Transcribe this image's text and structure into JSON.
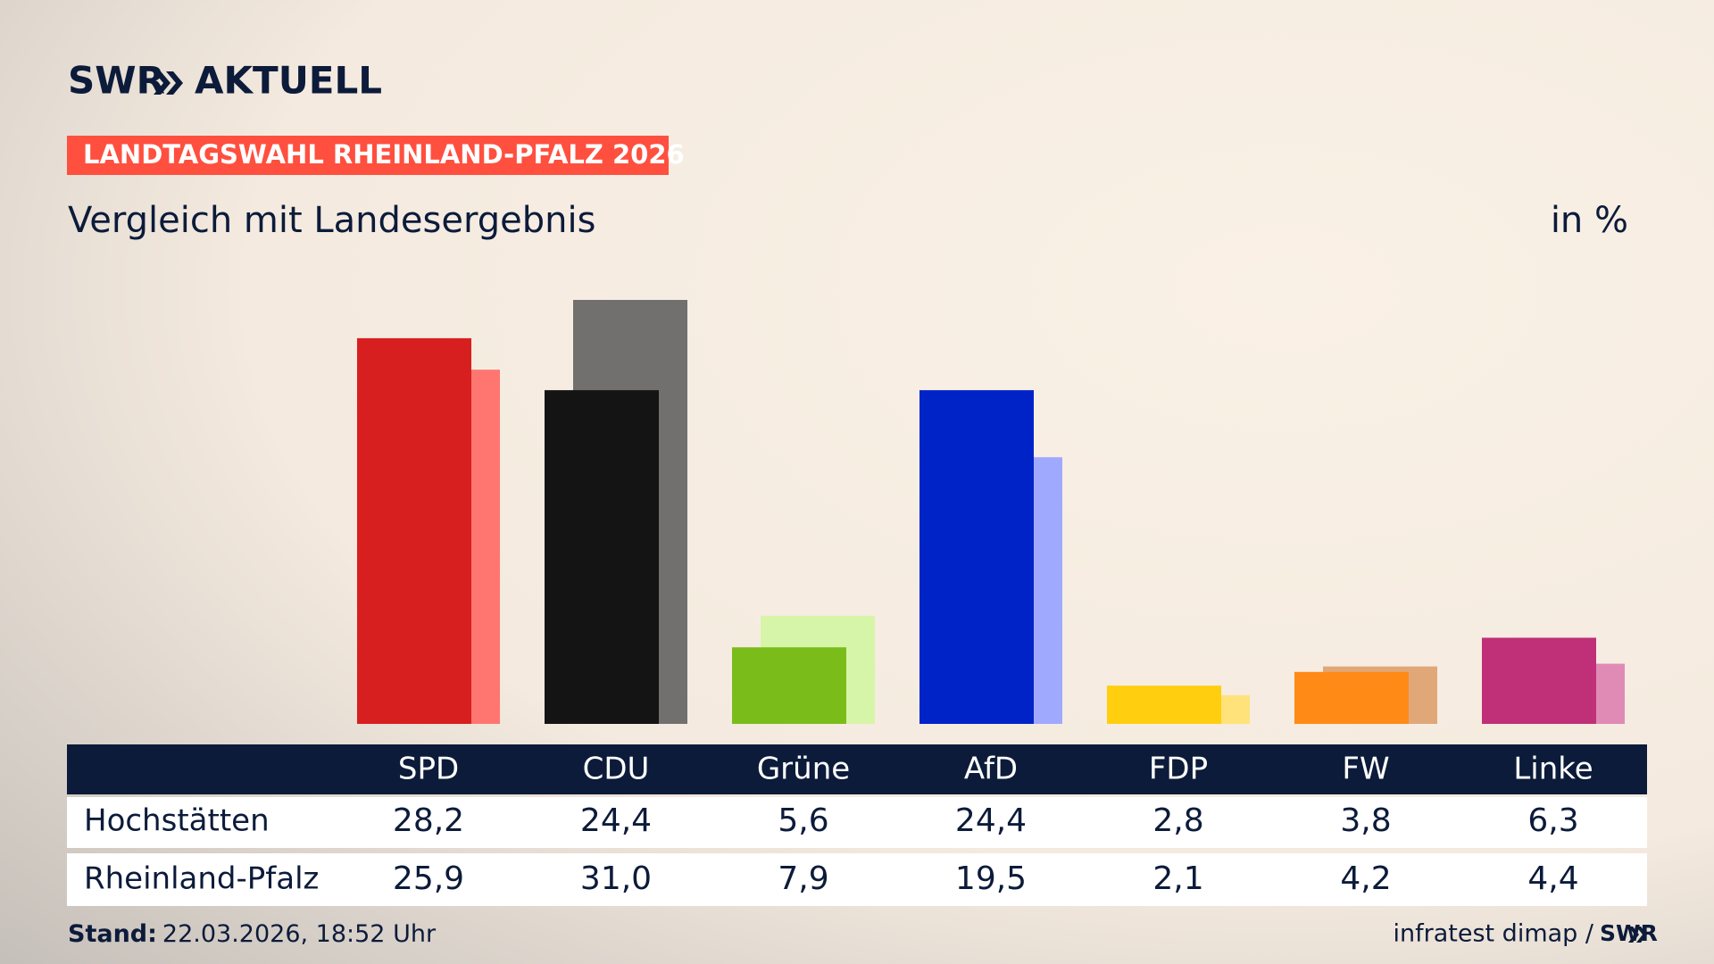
{
  "header": {
    "brand": "SWR",
    "brand_suffix": "AKTUELL",
    "tag": "LANDTAGSWAHL RHEINLAND-PFALZ 2026"
  },
  "chart_data": {
    "type": "bar",
    "title": "Vergleich mit Landesergebnis",
    "unit": "in %",
    "categories": [
      "SPD",
      "CDU",
      "Grüne",
      "AfD",
      "FDP",
      "FW",
      "Linke"
    ],
    "series": [
      {
        "name": "Hochstätten",
        "colors": [
          "#d81f1f",
          "#141414",
          "#7abd1b",
          "#0023c8",
          "#ffcf0f",
          "#ff8a16",
          "#bf3078"
        ],
        "values": [
          28.2,
          24.4,
          5.6,
          24.4,
          2.8,
          3.8,
          6.3
        ],
        "value_labels": [
          "28,2",
          "24,4",
          "5,6",
          "24,4",
          "2,8",
          "3,8",
          "6,3"
        ]
      },
      {
        "name": "Rheinland-Pfalz",
        "colors": [
          "#ff7670",
          "#72706e",
          "#d6f5a8",
          "#9faaff",
          "#ffe27a",
          "#e0a878",
          "#e08ab6"
        ],
        "values": [
          25.9,
          31.0,
          7.9,
          19.5,
          2.1,
          4.2,
          4.4
        ],
        "value_labels": [
          "25,9",
          "31,0",
          "7,9",
          "19,5",
          "2,1",
          "4,2",
          "4,4"
        ]
      }
    ]
  },
  "footer": {
    "stand_label": "Stand:",
    "stand": "22.03.2026, 18:52 Uhr",
    "source": "infratest dimap /",
    "source_brand": "SWR"
  }
}
